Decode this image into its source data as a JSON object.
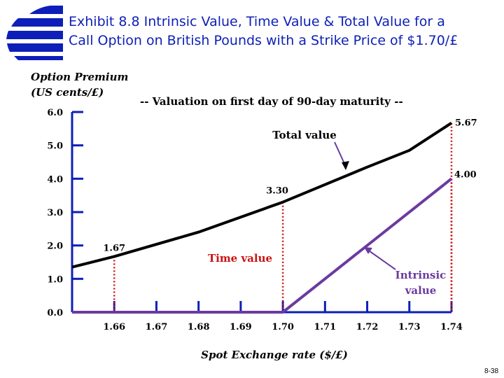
{
  "header": {
    "title_line1": "Exhibit 8.8  Intrinsic Value, Time Value & Total Value for a",
    "title_line2": "Call Option on British Pounds with a Strike Price of $1.70/£",
    "brand_color": "#0d1fb8"
  },
  "page_number": "8-38",
  "chart_data": {
    "type": "line",
    "subtitle": "-- Valuation on first day of 90-day maturity --",
    "ylabel_line1": "Option Premium",
    "ylabel_line2": "(US cents/£)",
    "xlabel": "Spot Exchange rate ($/£)",
    "x_ticks": [
      "1.66",
      "1.67",
      "1.68",
      "1.69",
      "1.70",
      "1.71",
      "1.72",
      "1.73",
      "1.74"
    ],
    "y_ticks": [
      "0.0",
      "1.0",
      "2.0",
      "3.0",
      "4.0",
      "5.0",
      "6.0"
    ],
    "xlim": [
      1.65,
      1.74
    ],
    "ylim": [
      0,
      6
    ],
    "series": [
      {
        "name": "Total value",
        "color": "#000000",
        "points": [
          [
            1.65,
            1.35
          ],
          [
            1.66,
            1.67
          ],
          [
            1.68,
            2.4
          ],
          [
            1.7,
            3.3
          ],
          [
            1.72,
            4.35
          ],
          [
            1.73,
            4.85
          ],
          [
            1.74,
            5.67
          ]
        ]
      },
      {
        "name": "Intrinsic value",
        "color": "#6b3aa0",
        "points": [
          [
            1.65,
            0.0
          ],
          [
            1.7,
            0.0
          ],
          [
            1.74,
            4.0
          ]
        ]
      }
    ],
    "reference_lines": [
      {
        "x": 1.66,
        "y": 1.67,
        "label": "1.67"
      },
      {
        "x": 1.7,
        "y": 3.3,
        "label": "3.30"
      },
      {
        "x": 1.74,
        "y": 5.67,
        "label": "5.67"
      },
      {
        "x": 1.74,
        "y": 4.0,
        "label": "4.00"
      }
    ],
    "reference_color": "#cc1111",
    "annotations": {
      "total_value": "Total value",
      "time_value": "Time value",
      "intrinsic_value_line1": "Intrinsic",
      "intrinsic_value_line2": "value"
    }
  }
}
